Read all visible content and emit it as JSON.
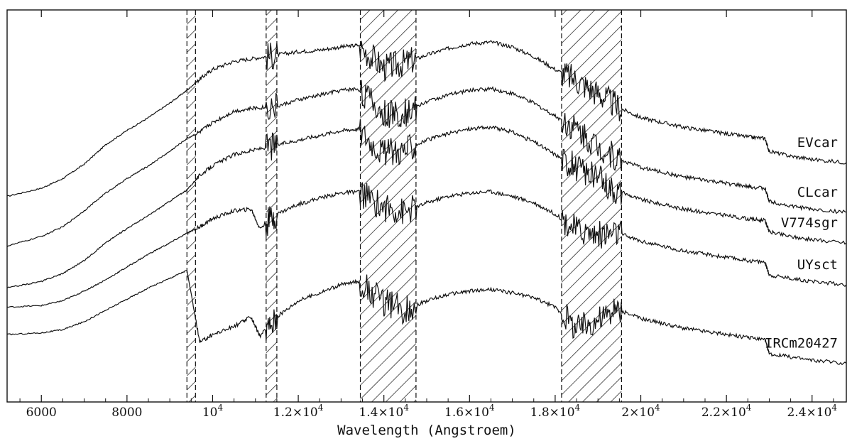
{
  "chart_data": {
    "type": "line",
    "title": "",
    "xlabel": "Wavelength (Angstroem)",
    "ylabel": "",
    "xlim": [
      5200,
      24800
    ],
    "x_ticks": [
      {
        "value": 6000,
        "base": "6000",
        "exp": ""
      },
      {
        "value": 8000,
        "base": "8000",
        "exp": ""
      },
      {
        "value": 10000,
        "base": "10",
        "exp": "4"
      },
      {
        "value": 12000,
        "base": "1.2×10",
        "exp": "4"
      },
      {
        "value": 14000,
        "base": "1.4×10",
        "exp": "4"
      },
      {
        "value": 16000,
        "base": "1.6×10",
        "exp": "4"
      },
      {
        "value": 18000,
        "base": "1.8×10",
        "exp": "4"
      },
      {
        "value": 20000,
        "base": "2×10",
        "exp": "4"
      },
      {
        "value": 22000,
        "base": "2.2×10",
        "exp": "4"
      },
      {
        "value": 24000,
        "base": "2.4×10",
        "exp": "4"
      }
    ],
    "y_offset_units": "arbitrary (spectra vertically offset)",
    "excluded_regions": [
      [
        9400,
        9600
      ],
      [
        11250,
        11500
      ],
      [
        13450,
        14750
      ],
      [
        18150,
        19550
      ]
    ],
    "series": [
      {
        "name": "EVcar",
        "offset": 0.0,
        "x": [
          5200,
          6000,
          6500,
          7000,
          7500,
          8000,
          8500,
          9000,
          9400,
          9700,
          10000,
          10500,
          11000,
          11500,
          12000,
          12500,
          13000,
          13400,
          14000,
          14500,
          15000,
          15500,
          16000,
          16500,
          17000,
          17500,
          18000,
          18500,
          19000,
          19500,
          20000,
          20500,
          21000,
          21500,
          22000,
          22500,
          22900,
          23000,
          23500,
          24000,
          24800
        ],
        "values": [
          4.0,
          4.25,
          4.55,
          5.0,
          5.6,
          6.05,
          6.45,
          6.9,
          7.3,
          7.65,
          7.95,
          8.2,
          8.3,
          8.4,
          8.5,
          8.55,
          8.65,
          8.7,
          8.0,
          8.15,
          8.4,
          8.6,
          8.75,
          8.8,
          8.65,
          8.35,
          7.95,
          7.6,
          7.2,
          6.75,
          6.45,
          6.3,
          6.15,
          6.05,
          5.95,
          5.85,
          5.8,
          5.4,
          5.25,
          5.15,
          5.05
        ]
      },
      {
        "name": "CLcar",
        "offset": 0.0,
        "x": [
          5200,
          6000,
          6500,
          7000,
          7500,
          8000,
          8500,
          9000,
          9400,
          9700,
          10000,
          10500,
          11000,
          11500,
          12000,
          12500,
          13000,
          13400,
          14000,
          14500,
          15000,
          15500,
          16000,
          16500,
          17000,
          17500,
          18000,
          18500,
          19000,
          19500,
          20000,
          20500,
          21000,
          21500,
          22000,
          22500,
          22900,
          23000,
          23500,
          24000,
          24800
        ],
        "values": [
          2.45,
          2.75,
          3.05,
          3.55,
          4.1,
          4.55,
          4.95,
          5.4,
          5.8,
          6.0,
          6.3,
          6.65,
          6.75,
          6.8,
          7.0,
          7.15,
          7.3,
          7.35,
          6.55,
          6.6,
          6.95,
          7.15,
          7.3,
          7.35,
          7.2,
          6.9,
          6.5,
          6.1,
          5.55,
          5.15,
          4.9,
          4.75,
          4.6,
          4.5,
          4.4,
          4.3,
          4.25,
          3.85,
          3.7,
          3.6,
          3.5
        ]
      },
      {
        "name": "V774sgr",
        "offset": 0.0,
        "x": [
          5200,
          6000,
          6500,
          7000,
          7500,
          8000,
          8500,
          9000,
          9400,
          9700,
          10000,
          10500,
          11000,
          11500,
          12000,
          12500,
          13000,
          13400,
          14000,
          14500,
          15000,
          15500,
          16000,
          16500,
          17000,
          17500,
          18000,
          18500,
          19000,
          19500,
          20000,
          20500,
          21000,
          21500,
          22000,
          22500,
          22900,
          23000,
          23500,
          24000,
          24800
        ],
        "values": [
          1.15,
          1.35,
          1.6,
          2.0,
          2.55,
          3.0,
          3.4,
          3.85,
          4.2,
          4.65,
          4.95,
          5.3,
          5.45,
          5.6,
          5.75,
          5.9,
          6.05,
          6.1,
          5.35,
          5.45,
          5.75,
          5.95,
          6.1,
          6.15,
          6.0,
          5.7,
          5.3,
          4.9,
          4.55,
          4.15,
          3.9,
          3.75,
          3.6,
          3.5,
          3.4,
          3.3,
          3.25,
          2.9,
          2.75,
          2.65,
          2.55
        ]
      },
      {
        "name": "UYsct",
        "offset": 0.0,
        "x": [
          5200,
          6000,
          6500,
          7000,
          7500,
          8000,
          8500,
          9000,
          9400,
          9700,
          10000,
          10500,
          10900,
          11100,
          11500,
          12000,
          12500,
          13000,
          13400,
          14000,
          14500,
          15000,
          15500,
          16000,
          16500,
          17000,
          17500,
          18000,
          18500,
          19000,
          19500,
          20000,
          20500,
          21000,
          21500,
          22000,
          22500,
          22900,
          23000,
          23500,
          24000,
          24800
        ],
        "values": [
          0.55,
          0.6,
          0.75,
          1.05,
          1.4,
          1.8,
          2.2,
          2.55,
          2.85,
          3.05,
          3.3,
          3.55,
          3.6,
          3.0,
          3.45,
          3.75,
          3.95,
          4.1,
          4.15,
          3.65,
          3.5,
          3.8,
          4.0,
          4.1,
          4.15,
          4.0,
          3.8,
          3.45,
          2.95,
          2.8,
          2.85,
          2.6,
          2.45,
          2.3,
          2.2,
          2.1,
          2.0,
          1.95,
          1.55,
          1.45,
          1.35,
          1.25
        ]
      },
      {
        "name": "IRCm20427",
        "offset": 0.0,
        "x": [
          5200,
          6000,
          6500,
          7000,
          7500,
          8000,
          8500,
          9000,
          9400,
          9700,
          10000,
          10500,
          10900,
          11100,
          11500,
          12000,
          12500,
          13000,
          13400,
          14000,
          14500,
          15000,
          15500,
          16000,
          16500,
          17000,
          17500,
          18000,
          18500,
          19000,
          19500,
          20000,
          20500,
          21000,
          21500,
          22000,
          22500,
          22900,
          23000,
          23500,
          24000,
          24800
        ],
        "values": [
          -0.3,
          -0.25,
          -0.15,
          0.1,
          0.45,
          0.8,
          1.15,
          1.45,
          1.7,
          -0.55,
          -0.3,
          -0.05,
          0.25,
          -0.35,
          0.25,
          0.75,
          1.0,
          1.25,
          1.35,
          0.7,
          0.45,
          0.75,
          0.95,
          1.05,
          1.1,
          1.0,
          0.85,
          0.55,
          -0.1,
          0.2,
          0.45,
          0.2,
          0.05,
          -0.1,
          -0.2,
          -0.3,
          -0.4,
          -0.45,
          -0.9,
          -1.0,
          -1.1,
          -1.2
        ]
      }
    ],
    "ylim": [
      -2.4,
      9.8
    ],
    "grid": false,
    "legend": "labels at right end of each curve"
  }
}
